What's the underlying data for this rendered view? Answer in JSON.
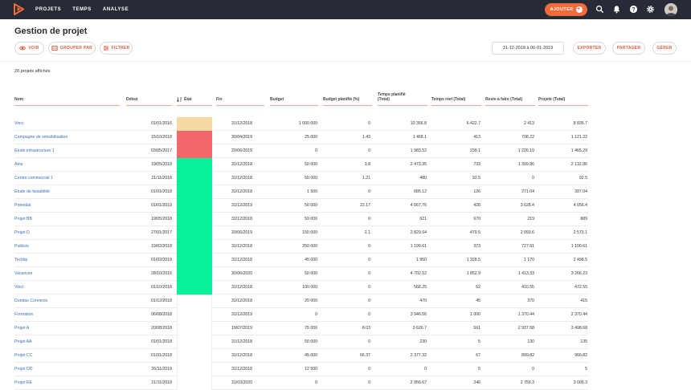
{
  "nav": {
    "items": [
      "PROJETS",
      "TEMPS",
      "ANALYSE"
    ]
  },
  "topbar": {
    "add_label": "AJOUTER"
  },
  "page": {
    "title": "Gestion de projet",
    "view_label": "VOIR",
    "group_label": "GROUPER PAR",
    "filter_label": "FILTRER",
    "date_range": "31-12-2018 à 06-01-2019",
    "export_label": "EXPORTER",
    "share_label": "PARTAGER",
    "manage_label": "GÉRER",
    "count_text": "20 projets affichés"
  },
  "colors": {
    "accent": "#f26b3a",
    "link": "#3a6fb0",
    "status_orange": "#f7d9a3",
    "status_red": "#f2686a",
    "status_green": "#07f09a"
  },
  "table": {
    "headers": [
      "Nom",
      "Début",
      "État",
      "Fin",
      "Budget",
      "Budget planifié (%)",
      "Temps planifié (Total)",
      "Temps réel (Total)",
      "Reste à faire (Total)",
      "Projeté (Total)"
    ],
    "rows": [
      {
        "name": "Vinci",
        "start": "01/01/2016",
        "status": "orange",
        "end": "31/12/2018",
        "budget": "1 000 000",
        "budget_pct": "0",
        "planned": "10 356.8",
        "actual": "6 422.7",
        "remaining": "2 413",
        "projected": "8 835.7"
      },
      {
        "name": "Campagne de sensibilisation",
        "start": "15/10/2018",
        "status": "red",
        "end": "30/04/2019",
        "budget": "25 000",
        "budget_pct": "1.43",
        "planned": "1 468.1",
        "actual": "413",
        "remaining": "708.22",
        "projected": "1 121.22"
      },
      {
        "name": "Etude infrastructure 1",
        "start": "03/05/2017",
        "status": "red",
        "end": "20/06/2019",
        "budget": "0",
        "budget_pct": "0",
        "planned": "1 983.52",
        "actual": "239.1",
        "remaining": "1 226.19",
        "projected": "1 465.29"
      },
      {
        "name": "Atos",
        "start": "19/05/2018",
        "status": "green",
        "end": "31/12/2018",
        "budget": "50 000",
        "budget_pct": "3.8",
        "planned": "2 473.35",
        "actual": "733",
        "remaining": "1 399.86",
        "projected": "2 132.86"
      },
      {
        "name": "Centre commercial 1",
        "start": "21/11/2018",
        "status": "green",
        "end": "31/12/2018",
        "budget": "50 000",
        "budget_pct": "1.21",
        "planned": "480",
        "actual": "92.5",
        "remaining": "0",
        "projected": "92.5"
      },
      {
        "name": "Etude de faisabilité",
        "start": "01/01/2018",
        "status": "green",
        "end": "31/12/2018",
        "budget": "1 500",
        "budget_pct": "0",
        "planned": "685.12",
        "actual": "126",
        "remaining": "271.04",
        "projected": "397.04"
      },
      {
        "name": "Potential",
        "start": "01/01/2019",
        "status": "green",
        "end": "31/12/2019",
        "budget": "50 000",
        "budget_pct": "22.17",
        "planned": "4 067.76",
        "actual": "428",
        "remaining": "3 628.4",
        "projected": "4 056.4"
      },
      {
        "name": "Projet BB",
        "start": "19/05/2018",
        "status": "green",
        "end": "31/12/2018",
        "budget": "50 000",
        "budget_pct": "0",
        "planned": "621",
        "actual": "670",
        "remaining": "219",
        "projected": "889"
      },
      {
        "name": "Projet D",
        "start": "27/01/2017",
        "status": "green",
        "end": "20/06/2019",
        "budget": "150 000",
        "budget_pct": "2.1",
        "planned": "2 829.04",
        "actual": "479.5",
        "remaining": "2 093.6",
        "projected": "2 573.1"
      },
      {
        "name": "Publicis",
        "start": "19/02/2018",
        "status": "green",
        "end": "31/12/2018",
        "budget": "250 000",
        "budget_pct": "0",
        "planned": "1 199.61",
        "actual": "373",
        "remaining": "727.61",
        "projected": "1 100.61"
      },
      {
        "name": "Techtip",
        "start": "01/02/2018",
        "status": "green",
        "end": "31/12/2018",
        "budget": "45 000",
        "budget_pct": "0",
        "planned": "1 950",
        "actual": "1 328.5",
        "remaining": "1 170",
        "projected": "2 498.5"
      },
      {
        "name": "Vacances",
        "start": "28/10/2016",
        "status": "green",
        "end": "30/06/2020",
        "budget": "50 000",
        "budget_pct": "0",
        "planned": "4 702.52",
        "actual": "1 852.9",
        "remaining": "1 413.33",
        "projected": "3 266.23"
      },
      {
        "name": "Vinci",
        "start": "01/10/2018",
        "status": "green",
        "end": "31/12/2018",
        "budget": "100 000",
        "budget_pct": "0",
        "planned": "568.25",
        "actual": "62",
        "remaining": "410.55",
        "projected": "472.55"
      },
      {
        "name": "Dundas Connects",
        "start": "01/12/2018",
        "status": "none",
        "end": "31/12/2018",
        "budget": "20 000",
        "budget_pct": "0",
        "planned": "470",
        "actual": "45",
        "remaining": "370",
        "projected": "415"
      },
      {
        "name": "Formation",
        "start": "06/08/2018",
        "status": "none",
        "end": "31/12/2019",
        "budget": "0",
        "budget_pct": "0",
        "planned": "3 946.56",
        "actual": "1 000",
        "remaining": "1 370.44",
        "projected": "2 370.44"
      },
      {
        "name": "Projet A",
        "start": "20/08/2018",
        "status": "none",
        "end": "19/07/2019",
        "budget": "75 000",
        "budget_pct": "8.03",
        "planned": "3 626.7",
        "actual": "561",
        "remaining": "2 937.68",
        "projected": "3 498.68"
      },
      {
        "name": "Projet AA",
        "start": "01/01/2018",
        "status": "none",
        "end": "31/12/2018",
        "budget": "50 000",
        "budget_pct": "0",
        "planned": "230",
        "actual": "5",
        "remaining": "130",
        "projected": "135"
      },
      {
        "name": "Projet CC",
        "start": "01/01/2018",
        "status": "none",
        "end": "31/12/2018",
        "budget": "45 000",
        "budget_pct": "66.37",
        "planned": "2 377.32",
        "actual": "67",
        "remaining": "899.82",
        "projected": "966.82"
      },
      {
        "name": "Projet DD",
        "start": "26/11/2018",
        "status": "none",
        "end": "31/12/2018",
        "budget": "12 500",
        "budget_pct": "0",
        "planned": "0",
        "actual": "5",
        "remaining": "0",
        "projected": "5"
      },
      {
        "name": "Projet EE",
        "start": "21/11/2018",
        "status": "none",
        "end": "31/03/2020",
        "budget": "0",
        "budget_pct": "0",
        "planned": "2 956.67",
        "actual": "246",
        "remaining": "2 759.3",
        "projected": "3 005.3"
      }
    ]
  }
}
